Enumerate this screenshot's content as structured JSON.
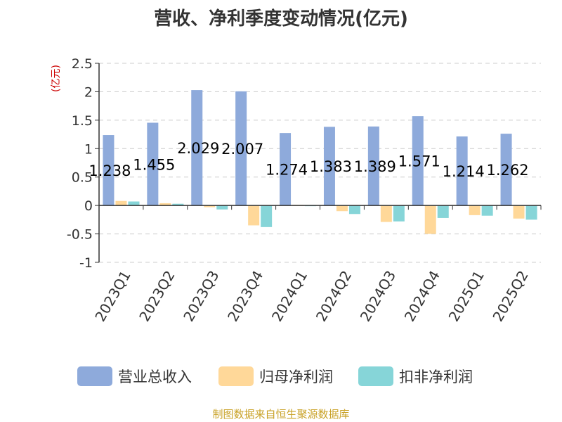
{
  "chart_data": {
    "type": "bar",
    "title": "营收、净利季度变动情况(亿元)",
    "ylabel": "(亿元)",
    "categories": [
      "2023Q1",
      "2023Q2",
      "2023Q3",
      "2023Q4",
      "2024Q1",
      "2024Q2",
      "2024Q3",
      "2024Q4",
      "2025Q1",
      "2025Q2"
    ],
    "series": [
      {
        "name": "营业总收入",
        "color": "#8eaadb",
        "values": [
          1.238,
          1.455,
          2.029,
          2.007,
          1.274,
          1.383,
          1.389,
          1.571,
          1.214,
          1.262
        ]
      },
      {
        "name": "归母净利润",
        "color": "#ffd899",
        "values": [
          0.08,
          0.04,
          -0.03,
          -0.35,
          0.01,
          -0.1,
          -0.29,
          -0.5,
          -0.17,
          -0.23
        ]
      },
      {
        "name": "扣非净利润",
        "color": "#86d5d8",
        "values": [
          0.07,
          0.03,
          -0.07,
          -0.38,
          0.0,
          -0.15,
          -0.28,
          -0.22,
          -0.18,
          -0.25
        ]
      }
    ],
    "data_labels": [
      "1.238",
      "1.455",
      "2.029",
      "2.007",
      "1.274",
      "1.383",
      "1.389",
      "1.571",
      "1.214",
      "1.262"
    ],
    "ylim": [
      -1,
      2.5
    ],
    "yticks": [
      "2.5",
      "2",
      "1.5",
      "1",
      "0.5",
      "0",
      "-0.5",
      "-1"
    ],
    "ytick_values": [
      2.5,
      2,
      1.5,
      1,
      0.5,
      0,
      -0.5,
      -1
    ],
    "grid": true,
    "legend_position": "bottom"
  },
  "source": "制图数据来自恒生聚源数据库"
}
